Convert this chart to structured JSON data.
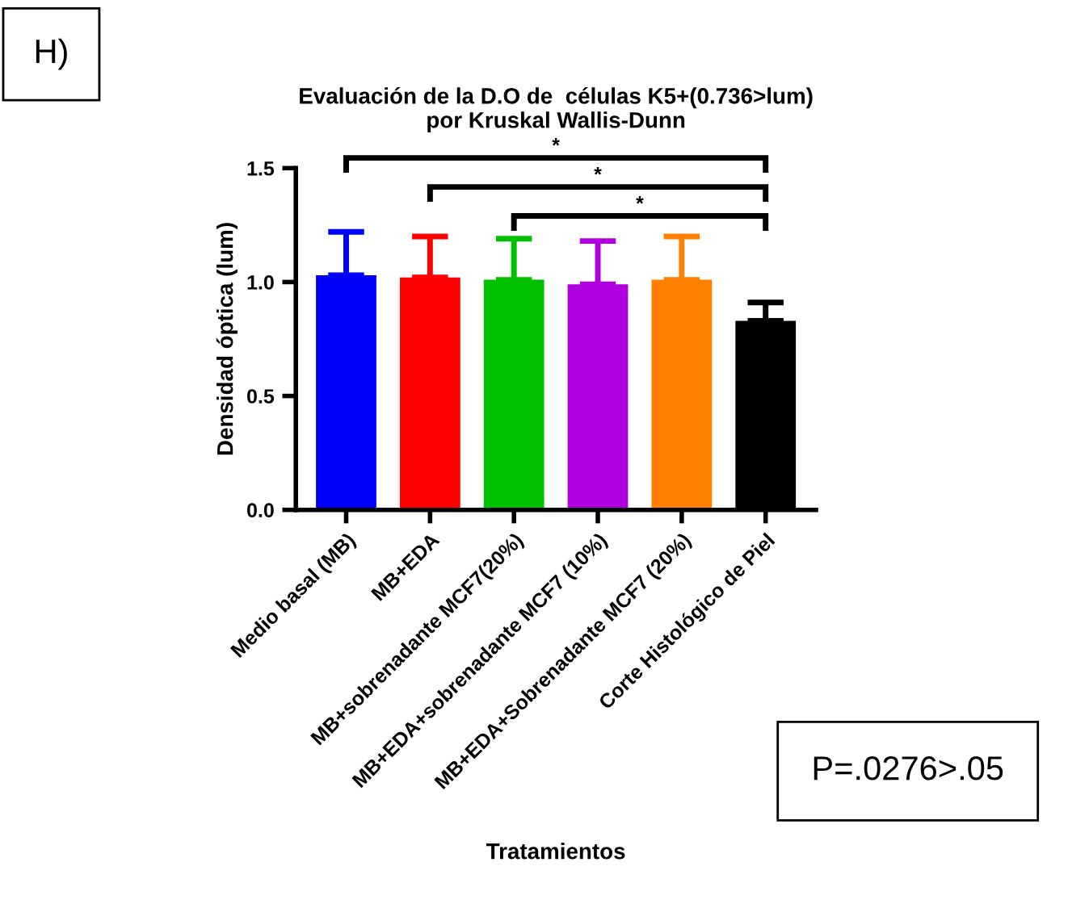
{
  "chart_data": {
    "type": "bar",
    "title": "Evaluación de la D.O de  células K5+(0.736>lum)\npor Kruskal Wallis-Dunn",
    "xlabel": "Tratamientos",
    "ylabel": "Densidad óptica (lum)",
    "categories": [
      "Medio basal (MB)",
      "MB+EDA",
      "MB+sobrenadante MCF7(20%)",
      "MB+EDA+sobrenadante MCF7 (10%)",
      "MB+EDA+Sobrenadante MCF7 (20%)",
      "Corte Histológico de Piel"
    ],
    "values": [
      1.03,
      1.02,
      1.01,
      0.99,
      1.01,
      0.83
    ],
    "colors": [
      "#0000ff",
      "#ff0000",
      "#00c000",
      "#b000e0",
      "#ff8000",
      "#000000"
    ],
    "errors": [
      [
        1.03,
        1.22
      ],
      [
        1.02,
        1.2
      ],
      [
        1.01,
        1.19
      ],
      [
        0.99,
        1.18
      ],
      [
        1.01,
        1.2
      ],
      [
        0.83,
        0.91
      ]
    ],
    "ylim": [
      0,
      1.5
    ],
    "yticks": [
      {
        "value": 0,
        "label": "0.0"
      },
      {
        "value": 0.5,
        "label": "0.5"
      },
      {
        "value": 1.0,
        "label": "1.0"
      },
      {
        "value": 1.5,
        "label": "1.5"
      }
    ],
    "grid": false,
    "legend": false,
    "annotations": [
      "H)",
      "*",
      "*",
      "*",
      "P=.0276>.05"
    ]
  }
}
